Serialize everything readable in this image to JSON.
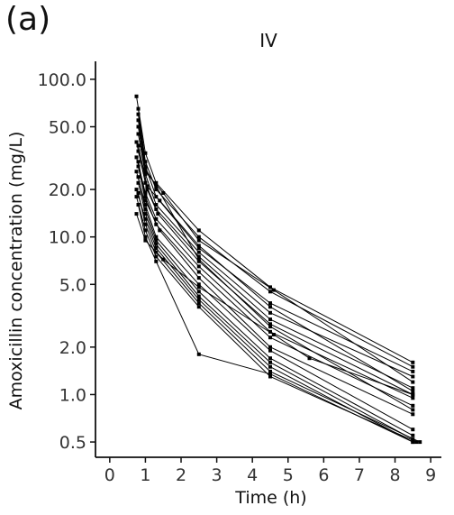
{
  "panel_label": "(a)",
  "chart_data": {
    "type": "line",
    "title": "IV",
    "xlabel": "Time (h)",
    "ylabel": "Amoxicillin concentration (mg/L)",
    "y_scale": "log10",
    "xlim": [
      -0.4,
      9.3
    ],
    "ylim": [
      0.4,
      130
    ],
    "x_ticks": [
      0,
      1,
      2,
      3,
      4,
      5,
      6,
      7,
      8,
      9
    ],
    "x_tick_labels": [
      "0",
      "1",
      "2",
      "3",
      "4",
      "5",
      "6",
      "7",
      "8",
      "9"
    ],
    "y_ticks": [
      0.5,
      1,
      2,
      5,
      10,
      20,
      50,
      100
    ],
    "y_tick_labels": [
      "0.5",
      "1.0",
      "2.0",
      "5.0",
      "10.0",
      "20.0",
      "50.0",
      "100.0"
    ],
    "grid": false,
    "legend": "none",
    "marker": "square",
    "color": "#000000",
    "series": [
      {
        "x": [
          0.75,
          1.0,
          1.3,
          2.5,
          4.5,
          8.5
        ],
        "y": [
          78,
          34,
          22,
          11,
          4.8,
          1.6
        ]
      },
      {
        "x": [
          0.8,
          1.0,
          1.3,
          2.5,
          4.5,
          8.5
        ],
        "y": [
          65,
          30,
          20,
          10,
          4.5,
          1.5
        ]
      },
      {
        "x": [
          0.8,
          1.0,
          1.3,
          2.5,
          4.5,
          8.5
        ],
        "y": [
          60,
          28,
          18,
          8.5,
          3.8,
          1.4
        ]
      },
      {
        "x": [
          0.8,
          1.0,
          1.3,
          2.5,
          4.5,
          8.5
        ],
        "y": [
          45,
          25,
          16,
          8,
          3.3,
          1.3
        ]
      },
      {
        "x": [
          0.75,
          1.0,
          1.3,
          2.5,
          4.5,
          8.5
        ],
        "y": [
          40,
          22,
          15,
          7.5,
          3.0,
          1.1
        ]
      },
      {
        "x": [
          0.8,
          1.05,
          1.35,
          2.5,
          4.5,
          8.5
        ],
        "y": [
          35,
          20,
          14,
          7,
          2.8,
          1.0
        ]
      },
      {
        "x": [
          0.75,
          1.0,
          1.3,
          2.5,
          4.5,
          8.5
        ],
        "y": [
          32,
          19,
          13,
          6.5,
          2.5,
          0.95
        ]
      },
      {
        "x": [
          0.8,
          1.0,
          1.3,
          2.5,
          4.5,
          8.5
        ],
        "y": [
          30,
          18,
          12,
          6,
          2.3,
          0.85
        ]
      },
      {
        "x": [
          0.8,
          1.0,
          1.4,
          2.5,
          4.5,
          8.5
        ],
        "y": [
          28,
          17,
          11,
          5.5,
          2.0,
          0.75
        ]
      },
      {
        "x": [
          0.75,
          1.0,
          1.3,
          2.5,
          4.5,
          8.5
        ],
        "y": [
          26,
          16,
          10,
          5,
          1.9,
          0.6
        ]
      },
      {
        "x": [
          0.8,
          1.0,
          1.3,
          2.5,
          4.5,
          8.5
        ],
        "y": [
          24,
          15,
          9.5,
          4.5,
          1.7,
          0.55
        ]
      },
      {
        "x": [
          0.8,
          1.0,
          1.3,
          2.5,
          4.5,
          8.5
        ],
        "y": [
          22,
          14,
          9,
          4.2,
          1.6,
          0.52
        ]
      },
      {
        "x": [
          0.75,
          1.0,
          1.3,
          2.5,
          4.5,
          8.5
        ],
        "y": [
          20,
          13,
          8.5,
          4,
          1.5,
          0.5
        ]
      },
      {
        "x": [
          0.8,
          1.0,
          1.3,
          2.5,
          4.5,
          8.7
        ],
        "y": [
          19,
          12,
          8,
          3.8,
          1.4,
          0.5
        ]
      },
      {
        "x": [
          0.75,
          1.0,
          1.3,
          2.5,
          4.5,
          8.6
        ],
        "y": [
          18,
          11,
          7.5,
          3.6,
          1.3,
          0.5
        ]
      },
      {
        "x": [
          0.8,
          1.0,
          1.3,
          2.5,
          4.5,
          8.5
        ],
        "y": [
          16,
          10,
          7,
          1.8,
          1.35,
          0.5
        ]
      },
      {
        "x": [
          0.75,
          1.0,
          1.5,
          2.5,
          4.6,
          5.6,
          8.5
        ],
        "y": [
          14,
          9.5,
          7.2,
          4.8,
          2.4,
          1.7,
          1.0
        ]
      },
      {
        "x": [
          0.8,
          1.0,
          1.5,
          2.5,
          4.6,
          8.5
        ],
        "y": [
          50,
          26,
          19,
          9.5,
          4.6,
          1.2
        ]
      },
      {
        "x": [
          0.8,
          1.05,
          1.4,
          2.5,
          4.5,
          8.5
        ],
        "y": [
          38,
          21,
          17,
          8.8,
          3.6,
          1.05
        ]
      },
      {
        "x": [
          0.8,
          1.0,
          1.3,
          2.5,
          4.5,
          8.5
        ],
        "y": [
          55,
          27,
          21,
          7.2,
          2.7,
          0.8
        ]
      }
    ]
  }
}
